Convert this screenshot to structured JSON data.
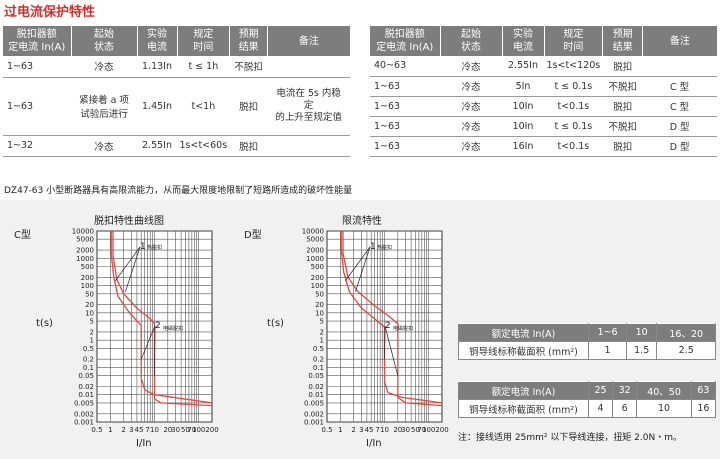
{
  "title": "过电流保护特性",
  "table_left": {
    "headers": [
      "脱扣器额\n定电流 In(A)",
      "起始\n状态",
      "实验\n电流",
      "规定\n时间",
      "预期\n结果",
      "备注"
    ],
    "rows": [
      [
        "1~63",
        "冷态",
        "1.13In",
        "t ≤ 1h",
        "不脱扣",
        ""
      ],
      [
        "1~63",
        "紧接着 a 项\n试验后进行",
        "1.45In",
        "t<1h",
        "脱扣",
        "电流在 5s 内稳\n定\n的上升至规定值"
      ],
      [
        "1~32",
        "冷态",
        "2.55In",
        "1s<t<60s",
        "脱扣",
        ""
      ]
    ]
  },
  "table_right": {
    "headers": [
      "脱扣器额\n定电流 In(A)",
      "起始\n状态",
      "实验\n电流",
      "规定\n时间",
      "预期\n结果",
      "备注"
    ],
    "rows": [
      [
        "40~63",
        "冷态",
        "2.55In",
        "1s<t<120s",
        "脱扣",
        ""
      ],
      [
        "1~63",
        "冷态",
        "5In",
        "t ≤ 0.1s",
        "不脱扣",
        "C 型"
      ],
      [
        "1~63",
        "冷态",
        "10In",
        "t<0.1s",
        "脱扣",
        "C 型"
      ],
      [
        "1~63",
        "冷态",
        "10In",
        "t ≤ 0.1s",
        "不脱扣",
        "D 型"
      ],
      [
        "1~63",
        "冷态",
        "16In",
        "t<0.1s",
        "脱扣",
        "D 型"
      ]
    ]
  },
  "note_dz": "DZ47-63 小型断路器具有高限流能力，从而最大限度地限制了短路所造成的破坏性能量",
  "chart_c": {
    "label": "C型",
    "title": "脱扣特性曲线图",
    "ylabel": "t(s)",
    "xlabel": "I/In",
    "curve1_label": "热脱扣",
    "curve2_label": "电磁脱扣",
    "num1": "1",
    "num2": "2"
  },
  "chart_d": {
    "label": "D型",
    "title": "限流特性",
    "ylabel": "t(s)",
    "xlabel": "I/In",
    "curve1_label": "热脱扣",
    "curve2_label": "电磁脱扣",
    "num1": "1",
    "num2": "2"
  },
  "yticks": [
    "10000",
    "5000",
    "2000",
    "1000",
    "500",
    "200",
    "100",
    "50",
    "20",
    "10",
    "5",
    "2",
    "1",
    "0.5",
    "0.2",
    "0.1",
    "0.05",
    "0.02",
    "0.01",
    "0.005",
    "0.002",
    "0.001"
  ],
  "xticks": [
    "0.5",
    "1",
    "2",
    "3",
    "4",
    "5",
    "7",
    "10",
    "20",
    "30",
    "50",
    "70",
    "100",
    "200"
  ],
  "spec1": {
    "header": [
      "额定电流 In(A)",
      "1~6",
      "10",
      "16、20"
    ],
    "row": [
      "铜导线标称截面积 (mm²)",
      "1",
      "1.5",
      "2.5"
    ]
  },
  "spec2": {
    "header": [
      "额定电流 In(A)",
      "25",
      "32",
      "40、50",
      "63"
    ],
    "row": [
      "铜导线标称截面积 (mm²)",
      "4",
      "6",
      "10",
      "16"
    ]
  },
  "footnote": "注：接线适用 25mm² 以下导线连接，扭矩 2.0N・m。",
  "colors": {
    "accent": "#d0302e",
    "header_bg": "#7d7d7d",
    "curve": "#e8453c"
  }
}
